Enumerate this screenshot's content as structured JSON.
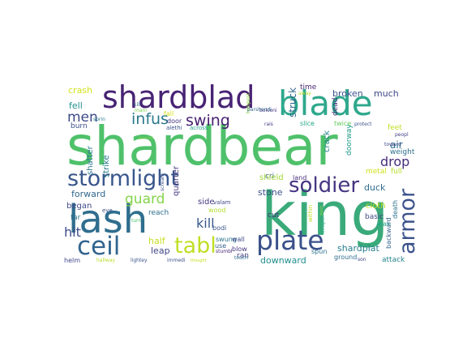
{
  "wordcloud": {
    "words": [
      {
        "text": "shardbear",
        "color": "#4fc16b"
      },
      {
        "text": "king",
        "color": "#3aaa7a"
      },
      {
        "text": "lash",
        "color": "#2f6e8e"
      },
      {
        "text": "blade",
        "color": "#2ea88c"
      },
      {
        "text": "shardblad",
        "color": "#482374"
      },
      {
        "text": "plate",
        "color": "#3b518b"
      },
      {
        "text": "stormlight",
        "color": "#39568c"
      },
      {
        "text": "tabl",
        "color": "#c0df25"
      },
      {
        "text": "ceil",
        "color": "#32648e"
      },
      {
        "text": "soldier",
        "color": "#453581"
      },
      {
        "text": "armor",
        "color": "#3b528b"
      },
      {
        "text": "infus",
        "color": "#2a788e"
      },
      {
        "text": "men",
        "color": "#3e4a89"
      },
      {
        "text": "swing",
        "color": "#482071"
      },
      {
        "text": "guard",
        "color": "#84d44b"
      },
      {
        "text": "drop",
        "color": "#472d7b"
      },
      {
        "text": "kill",
        "color": "#38588c"
      },
      {
        "text": "hit",
        "color": "#3e4c8a"
      },
      {
        "text": "crash",
        "color": "#d2e21b"
      },
      {
        "text": "fell",
        "color": "#21918c"
      },
      {
        "text": "broken",
        "color": "#3b528b"
      },
      {
        "text": "much",
        "color": "#3f4889"
      },
      {
        "text": "struck",
        "color": "#31688e"
      },
      {
        "text": "time",
        "color": "#482878"
      },
      {
        "text": "away",
        "color": "#b8de29"
      },
      {
        "text": "across",
        "color": "#1fa187"
      },
      {
        "text": "alethi",
        "color": "#3a538b"
      },
      {
        "text": "burn",
        "color": "#3c4f8a"
      },
      {
        "text": "mani",
        "color": "#7ad151"
      },
      {
        "text": "bolconi",
        "color": "#46307e"
      },
      {
        "text": "sprin",
        "color": "#2a788e"
      },
      {
        "text": "tempest",
        "color": "#93d741"
      },
      {
        "text": "parshendi",
        "color": "#31688e"
      },
      {
        "text": "rais",
        "color": "#443a83"
      },
      {
        "text": "slice",
        "color": "#21a685"
      },
      {
        "text": "twice",
        "color": "#65cb5e"
      },
      {
        "text": "protect",
        "color": "#3b528b"
      },
      {
        "text": "feet",
        "color": "#c2df23"
      },
      {
        "text": "dead",
        "color": "#46327e"
      },
      {
        "text": "crack",
        "color": "#26828e"
      },
      {
        "text": "doorway",
        "color": "#1e9c89"
      },
      {
        "text": "air",
        "color": "#2c728e"
      },
      {
        "text": "weight",
        "color": "#2d708e"
      },
      {
        "text": "toward",
        "color": "#3f4788"
      },
      {
        "text": "peopl",
        "color": "#433e85"
      },
      {
        "text": "metal",
        "color": "#cde11d"
      },
      {
        "text": "full",
        "color": "#b5de2b"
      },
      {
        "text": "shatter",
        "color": "#29798e"
      },
      {
        "text": "strike",
        "color": "#2a788e"
      },
      {
        "text": "behind",
        "color": "#7fd34e"
      },
      {
        "text": "quarter",
        "color": "#453781"
      },
      {
        "text": "cri",
        "color": "#38598c"
      },
      {
        "text": "land",
        "color": "#472f7d"
      },
      {
        "text": "shield",
        "color": "#a2da37"
      },
      {
        "text": "stone",
        "color": "#3b518b"
      },
      {
        "text": "duck",
        "color": "#2f6c8e"
      },
      {
        "text": "within",
        "color": "#bddf26"
      },
      {
        "text": "forward",
        "color": "#31688e"
      },
      {
        "text": "began",
        "color": "#3e4989"
      },
      {
        "text": "eye",
        "color": "#3b518b"
      },
      {
        "text": "far",
        "color": "#2d718e"
      },
      {
        "text": "scream",
        "color": "#3b528b"
      },
      {
        "text": "side",
        "color": "#453882"
      },
      {
        "text": "reach",
        "color": "#2e6f8e"
      },
      {
        "text": "valam",
        "color": "#3e4a89"
      },
      {
        "text": "wood",
        "color": "#b2dd2d"
      },
      {
        "text": "cut",
        "color": "#46307e"
      },
      {
        "text": "cloth",
        "color": "#c5e021"
      },
      {
        "text": "bodi",
        "color": "#3a548c"
      },
      {
        "text": "swung",
        "color": "#2b758e"
      },
      {
        "text": "use",
        "color": "#35608d"
      },
      {
        "text": "dash",
        "color": "#85d54a"
      },
      {
        "text": "basic",
        "color": "#3f4788"
      },
      {
        "text": "leak",
        "color": "#20a486"
      },
      {
        "text": "death",
        "color": "#2c738e"
      },
      {
        "text": "backward",
        "color": "#34618d"
      },
      {
        "text": "weapon",
        "color": "#27ad81"
      },
      {
        "text": "half",
        "color": "#c8e020"
      },
      {
        "text": "leap",
        "color": "#414487"
      },
      {
        "text": "shardplat",
        "color": "#277f8e"
      },
      {
        "text": "turn",
        "color": "#4ac16d"
      },
      {
        "text": "wall",
        "color": "#3e4989"
      },
      {
        "text": "blow",
        "color": "#453781"
      },
      {
        "text": "ran",
        "color": "#443983"
      },
      {
        "text": "stumbl",
        "color": "#482979"
      },
      {
        "text": "spun",
        "color": "#2c728e"
      },
      {
        "text": "downward",
        "color": "#218e8d"
      },
      {
        "text": "ground",
        "color": "#2e6d8e"
      },
      {
        "text": "son",
        "color": "#404588"
      },
      {
        "text": "attack",
        "color": "#25848e"
      },
      {
        "text": "helm",
        "color": "#3f4889"
      },
      {
        "text": "hallway",
        "color": "#bade28"
      },
      {
        "text": "lightey",
        "color": "#3a548c"
      },
      {
        "text": "immedi",
        "color": "#3b528b"
      },
      {
        "text": "thought",
        "color": "#c8e020"
      },
      {
        "text": "touch",
        "color": "#2b758e"
      },
      {
        "text": "door",
        "color": "#453781"
      },
      {
        "text": "fall",
        "color": "#d8e219"
      },
      {
        "text": "kill",
        "color": "#31688e"
      }
    ]
  }
}
